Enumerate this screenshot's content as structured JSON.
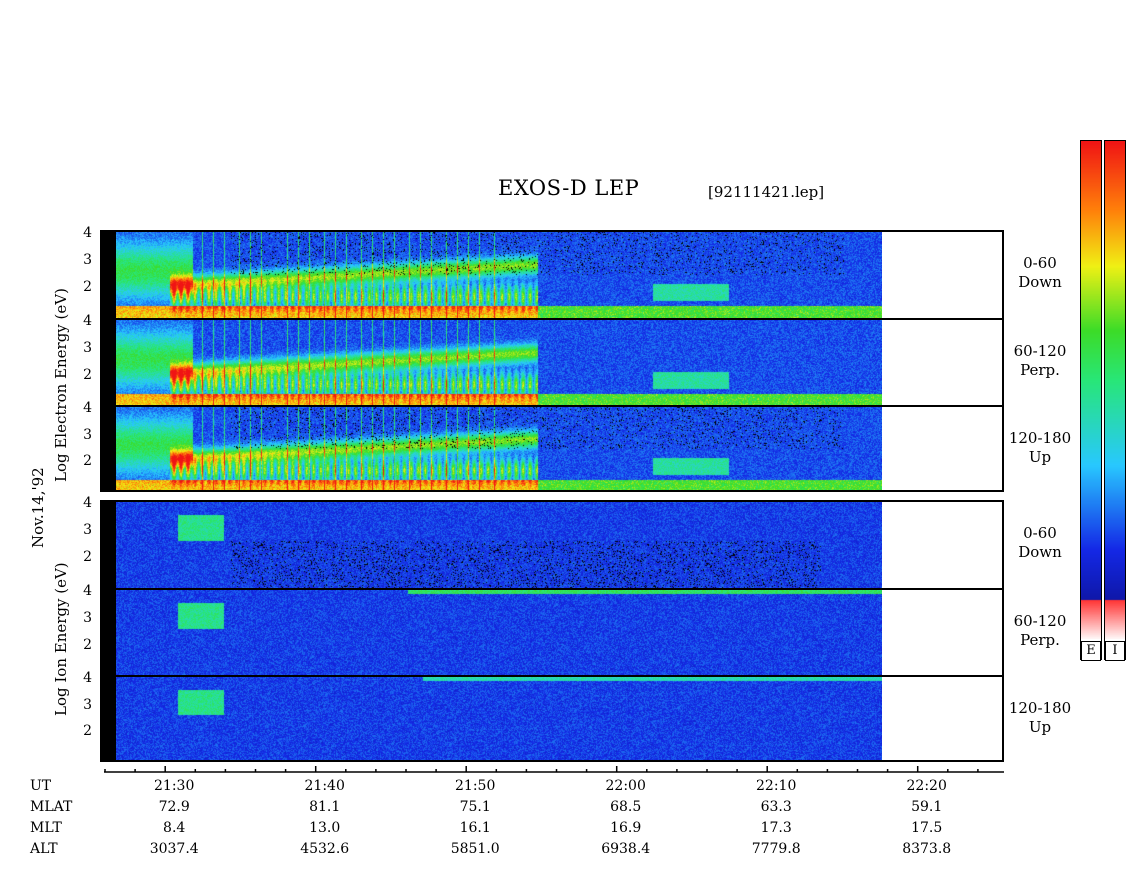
{
  "chart_data": {
    "type": "heatmap",
    "title": "EXOS-D LEP",
    "file": "[92111421.lep]",
    "date_label": "Nov.14,'92",
    "electron_axis_label": "Log Electron Energy (eV)",
    "ion_axis_label": "Log Ion Energy (eV)",
    "energy_ticks": [
      "1",
      "2",
      "3",
      "4"
    ],
    "electron_panels": [
      {
        "pitch": "0-60",
        "dir": "Down"
      },
      {
        "pitch": "60-120",
        "dir": "Perp."
      },
      {
        "pitch": "120-180",
        "dir": "Up"
      }
    ],
    "ion_panels": [
      {
        "pitch": "0-60",
        "dir": "Down"
      },
      {
        "pitch": "60-120",
        "dir": "Perp."
      },
      {
        "pitch": "120-180",
        "dir": "Up"
      }
    ],
    "time_range": [
      "21:26",
      "22:26"
    ],
    "data_end_time": "22:17",
    "colorbar_labels": [
      "E",
      "I"
    ],
    "footer": {
      "row_labels": [
        "UT",
        "MLAT",
        "MLT",
        "ALT"
      ],
      "columns": [
        {
          "UT": "21:30",
          "MLAT": "72.9",
          "MLT": "8.4",
          "ALT": "3037.4"
        },
        {
          "UT": "21:40",
          "MLAT": "81.1",
          "MLT": "13.0",
          "ALT": "4532.6"
        },
        {
          "UT": "21:50",
          "MLAT": "75.1",
          "MLT": "16.1",
          "ALT": "5851.0"
        },
        {
          "UT": "22:00",
          "MLAT": "68.5",
          "MLT": "16.9",
          "ALT": "6938.4"
        },
        {
          "UT": "22:10",
          "MLAT": "63.3",
          "MLT": "17.3",
          "ALT": "7779.8"
        },
        {
          "UT": "22:20",
          "MLAT": "59.1",
          "MLT": "17.5",
          "ALT": "8373.8"
        }
      ]
    }
  }
}
